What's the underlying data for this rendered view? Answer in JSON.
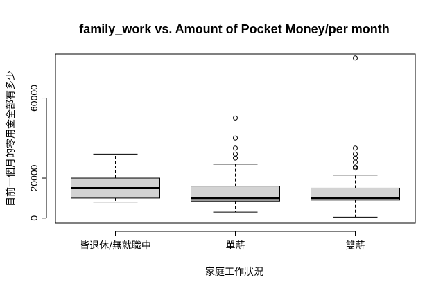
{
  "chart_data": {
    "type": "boxplot",
    "title": "family_work vs. Amount of Pocket Money/per month",
    "xlabel": "家庭工作狀況",
    "ylabel": "目前一個月的零用金全部有多少",
    "categories": [
      "皆退休/無就職中",
      "單薪",
      "雙薪"
    ],
    "y_ticks": [
      0,
      20000,
      60000
    ],
    "y_tick_labels": [
      "0",
      "20000",
      "60000"
    ],
    "ylim": [
      -2500,
      82000
    ],
    "box_fill": "#d3d3d3",
    "line_color": "#000000",
    "series": [
      {
        "name": "皆退休/無就職中",
        "whisker_low": 8000,
        "q1": 10000,
        "median": 15000,
        "q3": 20000,
        "whisker_high": 32000,
        "outliers": []
      },
      {
        "name": "單薪",
        "whisker_low": 3000,
        "q1": 8500,
        "median": 10000,
        "q3": 16000,
        "whisker_high": 27000,
        "outliers": [
          30000,
          32000,
          35000,
          40000,
          50000
        ]
      },
      {
        "name": "雙薪",
        "whisker_low": 500,
        "q1": 9000,
        "median": 10000,
        "q3": 15000,
        "whisker_high": 21500,
        "outliers": [
          25000,
          25500,
          28000,
          30000,
          32000,
          35000,
          80000
        ]
      }
    ]
  }
}
